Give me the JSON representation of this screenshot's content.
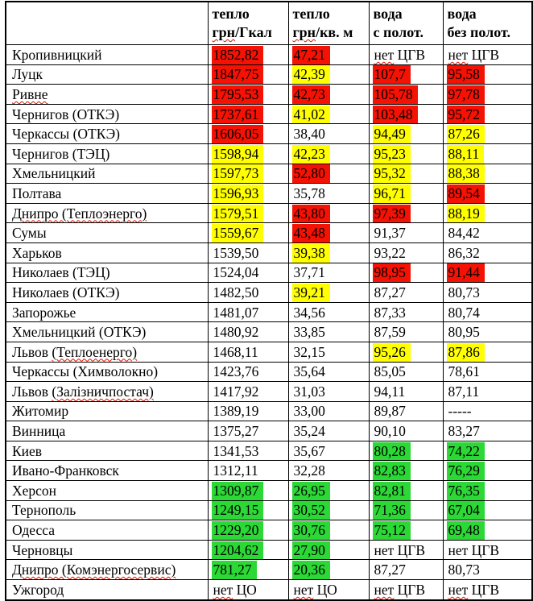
{
  "table": {
    "header": {
      "city_label": "",
      "cols": [
        {
          "line1": "тепло",
          "line2_flag": "грн",
          "line2_rest": "/Гкал"
        },
        {
          "line1": "тепло",
          "line2_flag": "грн",
          "line2_rest": "/кв. м"
        },
        {
          "line1": "вода",
          "line2_flag": "",
          "line2_rest": "с полот."
        },
        {
          "line1": "вода",
          "line2_flag": "",
          "line2_rest": "без полот."
        }
      ]
    },
    "highlight_colors": {
      "red": "#f41204",
      "yellow": "#ffff00",
      "green": "#2bd835",
      "none": "transparent"
    },
    "squiggle_color": "#dd1100",
    "rows": [
      {
        "city": {
          "v": "Кропивницкий"
        },
        "values": [
          {
            "v": "1852,82",
            "hl": "red"
          },
          {
            "v": "47,21",
            "hl": "red"
          },
          {
            "v": "нет ЦГВ",
            "flag": "нет"
          },
          {
            "v": "нет ЦГВ",
            "flag": "нет"
          }
        ]
      },
      {
        "city": {
          "v": "Луцк"
        },
        "values": [
          {
            "v": "1847,75",
            "hl": "red"
          },
          {
            "v": "42,39",
            "hl": "yellow"
          },
          {
            "v": "107,7",
            "hl": "red"
          },
          {
            "v": "95,58",
            "hl": "red"
          }
        ]
      },
      {
        "city": {
          "v": "Ривне",
          "flag": "Ривне"
        },
        "values": [
          {
            "v": "1795,53",
            "hl": "red"
          },
          {
            "v": "42,73",
            "hl": "red"
          },
          {
            "v": "105,78",
            "hl": "red"
          },
          {
            "v": "97,78",
            "hl": "red"
          }
        ]
      },
      {
        "city": {
          "v": "Чернигов (ОТКЭ)"
        },
        "values": [
          {
            "v": "1737,61",
            "hl": "red"
          },
          {
            "v": "41,02",
            "hl": "yellow"
          },
          {
            "v": "103,48",
            "hl": "red"
          },
          {
            "v": "95,72",
            "hl": "red"
          }
        ]
      },
      {
        "city": {
          "v": "Черкассы (ОТКЭ)"
        },
        "values": [
          {
            "v": "1606,05",
            "hl": "red"
          },
          {
            "v": "38,40",
            "hl": "none"
          },
          {
            "v": "94,49",
            "hl": "yellow"
          },
          {
            "v": "87,26",
            "hl": "yellow"
          }
        ]
      },
      {
        "city": {
          "v": "Чернигов (ТЭЦ)"
        },
        "values": [
          {
            "v": "1598,94",
            "hl": "yellow"
          },
          {
            "v": "42,23",
            "hl": "yellow"
          },
          {
            "v": "95,23",
            "hl": "yellow"
          },
          {
            "v": "88,11",
            "hl": "yellow"
          }
        ]
      },
      {
        "city": {
          "v": "Хмельницкий"
        },
        "values": [
          {
            "v": "1597,73",
            "hl": "yellow"
          },
          {
            "v": "52,80",
            "hl": "red"
          },
          {
            "v": "95,32",
            "hl": "yellow"
          },
          {
            "v": "88,38",
            "hl": "yellow"
          }
        ]
      },
      {
        "city": {
          "v": "Полтава"
        },
        "values": [
          {
            "v": "1596,93",
            "hl": "yellow"
          },
          {
            "v": "35,78",
            "hl": "none"
          },
          {
            "v": "96,71",
            "hl": "yellow"
          },
          {
            "v": "89,54",
            "hl": "red"
          }
        ]
      },
      {
        "city": {
          "v": "Днипро (Теплоэнерго)",
          "flag": "Днипро (Теплоэнерго)"
        },
        "values": [
          {
            "v": "1579,51",
            "hl": "yellow"
          },
          {
            "v": "43,80",
            "hl": "red"
          },
          {
            "v": "97,39",
            "hl": "red"
          },
          {
            "v": "88,19",
            "hl": "yellow"
          }
        ]
      },
      {
        "city": {
          "v": "Сумы"
        },
        "values": [
          {
            "v": "1559,67",
            "hl": "yellow"
          },
          {
            "v": "43,48",
            "hl": "red"
          },
          {
            "v": "91,37",
            "hl": "none"
          },
          {
            "v": "84,42",
            "hl": "none"
          }
        ]
      },
      {
        "city": {
          "v": "Харьков"
        },
        "values": [
          {
            "v": "1539,50",
            "hl": "none"
          },
          {
            "v": "39,38",
            "hl": "yellow"
          },
          {
            "v": "93,22",
            "hl": "none"
          },
          {
            "v": "86,32",
            "hl": "none"
          }
        ]
      },
      {
        "city": {
          "v": "Николаев (ТЭЦ)"
        },
        "values": [
          {
            "v": "1524,04",
            "hl": "none"
          },
          {
            "v": "37,71",
            "hl": "none"
          },
          {
            "v": "98,95",
            "hl": "red"
          },
          {
            "v": "91,44",
            "hl": "red"
          }
        ]
      },
      {
        "city": {
          "v": "Николаев (ОТКЭ)"
        },
        "values": [
          {
            "v": "1482,50",
            "hl": "none"
          },
          {
            "v": "39,21",
            "hl": "yellow"
          },
          {
            "v": "87,27",
            "hl": "none"
          },
          {
            "v": "80,73",
            "hl": "none"
          }
        ]
      },
      {
        "city": {
          "v": "Запорожье"
        },
        "values": [
          {
            "v": "1481,07",
            "hl": "none"
          },
          {
            "v": "34,56",
            "hl": "none"
          },
          {
            "v": "87,33",
            "hl": "none"
          },
          {
            "v": "80,74",
            "hl": "none"
          }
        ]
      },
      {
        "city": {
          "v": "Хмельницкий (ОТКЭ)"
        },
        "values": [
          {
            "v": "1480,92",
            "hl": "none"
          },
          {
            "v": "33,85",
            "hl": "none"
          },
          {
            "v": "87,59",
            "hl": "none"
          },
          {
            "v": "80,95",
            "hl": "none"
          }
        ]
      },
      {
        "city": {
          "v": "Львов (Теплоенерго)",
          "flag": "(Теплоенерго)"
        },
        "values": [
          {
            "v": "1468,11",
            "hl": "none"
          },
          {
            "v": "32,15",
            "hl": "none"
          },
          {
            "v": "95,26",
            "hl": "yellow"
          },
          {
            "v": "87,86",
            "hl": "yellow"
          }
        ]
      },
      {
        "city": {
          "v": "Черкассы (Химволокно)"
        },
        "values": [
          {
            "v": "1423,76",
            "hl": "none"
          },
          {
            "v": "35,64",
            "hl": "none"
          },
          {
            "v": "85,05",
            "hl": "none"
          },
          {
            "v": "78,61",
            "hl": "none"
          }
        ]
      },
      {
        "city": {
          "v": "Львов (Залізничпостач)",
          "flag": "(Залізничпостач)"
        },
        "values": [
          {
            "v": "1417,92",
            "hl": "none"
          },
          {
            "v": "31,03",
            "hl": "none"
          },
          {
            "v": "94,11",
            "hl": "none"
          },
          {
            "v": "87,11",
            "hl": "none"
          }
        ]
      },
      {
        "city": {
          "v": "Житомир"
        },
        "values": [
          {
            "v": "1389,19",
            "hl": "none"
          },
          {
            "v": "33,00",
            "hl": "none"
          },
          {
            "v": "89,87",
            "hl": "none"
          },
          {
            "v": "-----",
            "hl": "none"
          }
        ]
      },
      {
        "city": {
          "v": "Винница"
        },
        "values": [
          {
            "v": "1375,27",
            "hl": "none"
          },
          {
            "v": "35,24",
            "hl": "none"
          },
          {
            "v": "90,10",
            "hl": "none"
          },
          {
            "v": "83,27",
            "hl": "none"
          }
        ]
      },
      {
        "city": {
          "v": "Киев"
        },
        "values": [
          {
            "v": "1341,53",
            "hl": "none"
          },
          {
            "v": "35,67",
            "hl": "none"
          },
          {
            "v": "80,28",
            "hl": "green"
          },
          {
            "v": "74,22",
            "hl": "green"
          }
        ]
      },
      {
        "city": {
          "v": "Ивано-Франковск"
        },
        "values": [
          {
            "v": "1312,11",
            "hl": "none"
          },
          {
            "v": "32,28",
            "hl": "none"
          },
          {
            "v": "82,83",
            "hl": "green"
          },
          {
            "v": "76,29",
            "hl": "green"
          }
        ]
      },
      {
        "city": {
          "v": "Херсон"
        },
        "values": [
          {
            "v": "1309,87",
            "hl": "green"
          },
          {
            "v": "26,95",
            "hl": "green"
          },
          {
            "v": "82,81",
            "hl": "green"
          },
          {
            "v": "76,35",
            "hl": "green"
          }
        ]
      },
      {
        "city": {
          "v": "Тернополь"
        },
        "values": [
          {
            "v": "1249,15",
            "hl": "green"
          },
          {
            "v": "30,52",
            "hl": "green"
          },
          {
            "v": "71,36",
            "hl": "green"
          },
          {
            "v": "67,04",
            "hl": "green"
          }
        ]
      },
      {
        "city": {
          "v": "Одесса"
        },
        "values": [
          {
            "v": "1229,20",
            "hl": "green"
          },
          {
            "v": "30,76",
            "hl": "green"
          },
          {
            "v": "75,12",
            "hl": "green"
          },
          {
            "v": "69,48",
            "hl": "green"
          }
        ]
      },
      {
        "city": {
          "v": "Черновцы"
        },
        "values": [
          {
            "v": "1204,62",
            "hl": "green"
          },
          {
            "v": "27,90",
            "hl": "green"
          },
          {
            "v": "нет ЦГВ",
            "hl": "none"
          },
          {
            "v": "нет ЦГВ",
            "hl": "none"
          }
        ]
      },
      {
        "city": {
          "v": "Днипро (Комэнергосервис)",
          "flag": "Днипро (Комэнергосервис)"
        },
        "values": [
          {
            "v": "781,27",
            "hl": "green"
          },
          {
            "v": "20,36",
            "hl": "green"
          },
          {
            "v": "87,27",
            "hl": "none"
          },
          {
            "v": "80,73",
            "hl": "none"
          }
        ]
      },
      {
        "city": {
          "v": "Ужгород"
        },
        "values": [
          {
            "v": "нет ЦО",
            "flag": "нет"
          },
          {
            "v": "нет ЦО",
            "flag": "нет"
          },
          {
            "v": "нет ЦГВ",
            "flag": "нет"
          },
          {
            "v": "нет ЦГВ",
            "flag": "нет"
          }
        ]
      }
    ]
  }
}
